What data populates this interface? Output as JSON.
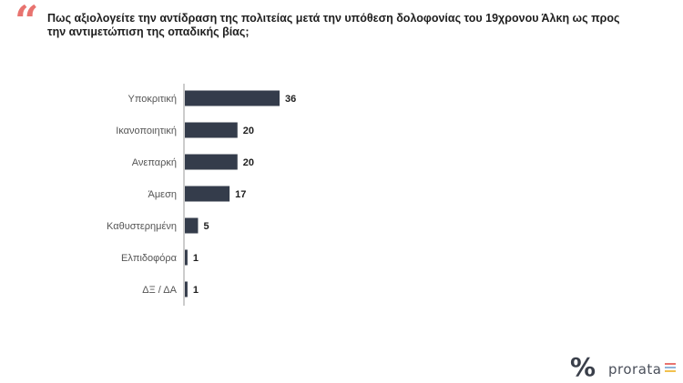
{
  "title": "Πως αξιολογείτε την αντίδραση της πολιτείας μετά την υπόθεση δολοφονίας του 19χρονου Άλκη ως προς την αντιμετώπιση της οπαδικής βίας;",
  "quote_glyph": "“",
  "logo": {
    "mark": "%",
    "text": "prorata",
    "bar_colors": [
      "#e8736f",
      "#8fb3d9",
      "#f2c14e"
    ]
  },
  "colors": {
    "bar": "#343c4b",
    "accent": "#e8736f",
    "axis": "#999999"
  },
  "chart_data": {
    "type": "bar",
    "orientation": "horizontal",
    "title": "Πως αξιολογείτε την αντίδραση της πολιτείας μετά την υπόθεση δολοφονίας του 19χρονου Άλκη ως προς την αντιμετώπιση της οπαδικής βίας;",
    "xlabel": "",
    "ylabel": "",
    "categories": [
      "Υποκριτική",
      "Ικανοποιητική",
      "Ανεπαρκή",
      "Άμεση",
      "Καθυστερημένη",
      "Ελπιδοφόρα",
      "ΔΞ / ΔΑ"
    ],
    "values": [
      36,
      20,
      20,
      17,
      5,
      1,
      1
    ],
    "xlim": [
      0,
      36
    ],
    "grid": false,
    "legend": "none",
    "data_labels": true
  }
}
